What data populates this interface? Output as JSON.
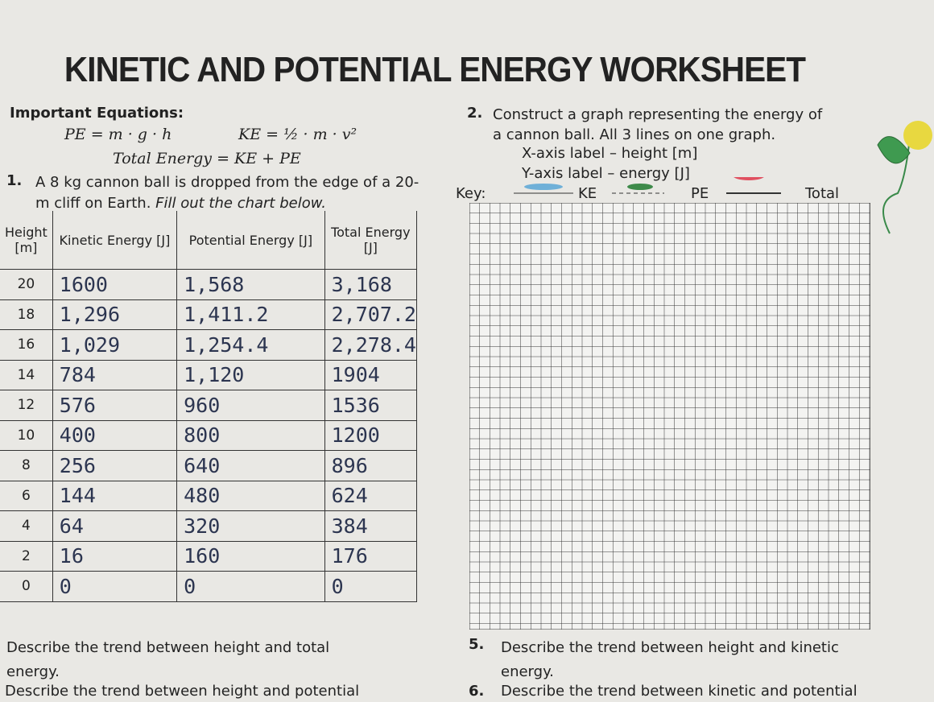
{
  "title": "KINETIC AND POTENTIAL ENERGY WORKSHEET",
  "equations": {
    "heading": "Important Equations:",
    "pe": "PE = m · g · h",
    "ke": "KE = ½ · m · v²",
    "total": "Total Energy = KE + PE"
  },
  "question1": {
    "number": "1.",
    "text": "A 8 kg cannon ball is dropped from the edge of a 20-m cliff on Earth.",
    "instruction": "Fill out the chart below."
  },
  "table": {
    "headers": [
      "Height [m]",
      "Kinetic Energy [J]",
      "Potential Energy [J]",
      "Total Energy [J]"
    ],
    "rows": [
      [
        "20",
        "1600",
        "1,568",
        "3,168"
      ],
      [
        "18",
        "1,296",
        "1,411.2",
        "2,707.2"
      ],
      [
        "16",
        "1,029",
        "1,254.4",
        "2,278.4"
      ],
      [
        "14",
        "784",
        "1,120",
        "1904"
      ],
      [
        "12",
        "576",
        "960",
        "1536"
      ],
      [
        "10",
        "400",
        "800",
        "1200"
      ],
      [
        "8",
        "256",
        "640",
        "896"
      ],
      [
        "6",
        "144",
        "480",
        "624"
      ],
      [
        "4",
        "64",
        "320",
        "384"
      ],
      [
        "2",
        "16",
        "160",
        "176"
      ],
      [
        "0",
        "0",
        "0",
        "0"
      ]
    ]
  },
  "question2": {
    "number": "2.",
    "text": "Construct a graph representing the energy of a cannon ball. All 3 lines on one graph.",
    "x_label": "X-axis label – height [m]",
    "y_label": "Y-axis label – energy [J]"
  },
  "key": {
    "label": "Key:",
    "items": [
      "KE",
      "PE",
      "Total"
    ]
  },
  "question3": {
    "text": "Describe the trend between height and total energy."
  },
  "question4": {
    "text": "Describe the trend between height and potential"
  },
  "question5": {
    "number": "5.",
    "text": "Describe the trend between height and kinetic energy."
  },
  "question6": {
    "number": "6.",
    "text": "Describe the trend between kinetic and potential"
  }
}
